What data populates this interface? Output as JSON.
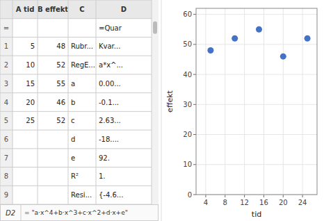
{
  "chart_data": [
    {
      "type": "table",
      "categories": [
        "A tid",
        "B effekt",
        "C",
        "D"
      ],
      "series": [
        {
          "name": "=",
          "values": [
            null,
            null,
            null,
            "=Quar"
          ]
        },
        {
          "name": "1",
          "values": [
            5,
            48,
            "Rubr...",
            "Kvar..."
          ]
        },
        {
          "name": "2",
          "values": [
            10,
            52,
            "RegE...",
            "a*x^..."
          ]
        },
        {
          "name": "3",
          "values": [
            15,
            55,
            "a",
            "0.00..."
          ]
        },
        {
          "name": "4",
          "values": [
            20,
            46,
            "b",
            "-0.1..."
          ]
        },
        {
          "name": "5",
          "values": [
            25,
            52,
            "c",
            "2.63..."
          ]
        },
        {
          "name": "6",
          "values": [
            null,
            null,
            "d",
            "-18...."
          ]
        },
        {
          "name": "7",
          "values": [
            null,
            null,
            "e",
            "92."
          ]
        },
        {
          "name": "8",
          "values": [
            null,
            null,
            "R²",
            "1."
          ]
        },
        {
          "name": "9",
          "values": [
            null,
            null,
            "Resi...",
            "{-4.6..."
          ]
        }
      ],
      "annotations": [
        "D2",
        "= \"a·x^4+b·x^3+c·x^2+d·x+e\""
      ]
    },
    {
      "type": "scatter",
      "x": [
        5,
        10,
        15,
        20,
        25
      ],
      "values": [
        48,
        52,
        55,
        46,
        52
      ],
      "xlabel": "tid",
      "ylabel": "effekt",
      "xlim": [
        2,
        27
      ],
      "ylim": [
        0,
        62
      ],
      "xticks": [
        4,
        8,
        12,
        16,
        20,
        24
      ],
      "yticks": [
        0,
        10,
        20,
        30,
        40,
        50,
        60
      ],
      "color": "#4472c4",
      "grid": true
    }
  ]
}
